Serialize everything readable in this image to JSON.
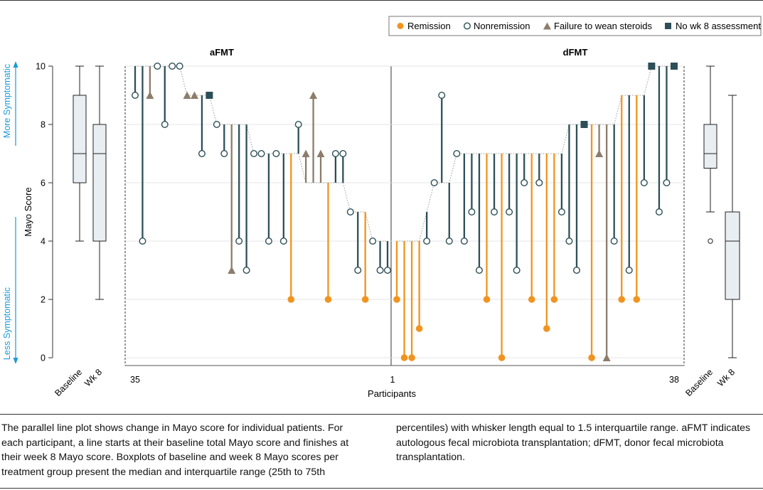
{
  "chart_data": {
    "type": "parallel-line",
    "ylabel": "Mayo Score",
    "xlabel": "Participants",
    "ylim": [
      0,
      10
    ],
    "yticks": [
      0,
      2,
      4,
      6,
      8,
      10
    ],
    "direction_labels": {
      "up": "More Symptomatic",
      "down": "Less Symptomatic"
    },
    "legend": [
      {
        "key": "remission",
        "label": "Remission",
        "marker": "filled-circle",
        "color": "#f0941f"
      },
      {
        "key": "nonremission",
        "label": "Nonremission",
        "marker": "open-circle",
        "color": "#2d4f57"
      },
      {
        "key": "failure",
        "label": "Failure to wean steroids",
        "marker": "triangle",
        "color": "#8c7d6b"
      },
      {
        "key": "nowk8",
        "label": "No wk 8 assessment",
        "marker": "square",
        "color": "#2d4f57"
      }
    ],
    "groups": [
      {
        "name": "aFMT",
        "x_start_label": "35",
        "x_end_label": "1",
        "participants": [
          {
            "baseline": 10,
            "wk8": 9,
            "outcome": "nonremission"
          },
          {
            "baseline": 10,
            "wk8": 4,
            "outcome": "nonremission"
          },
          {
            "baseline": 10,
            "wk8": 9,
            "outcome": "failure"
          },
          {
            "baseline": 10,
            "wk8": 10,
            "outcome": "nonremission"
          },
          {
            "baseline": 10,
            "wk8": 8,
            "outcome": "nonremission"
          },
          {
            "baseline": 10,
            "wk8": 10,
            "outcome": "nonremission"
          },
          {
            "baseline": 10,
            "wk8": 10,
            "outcome": "nonremission"
          },
          {
            "baseline": 9,
            "wk8": 9,
            "outcome": "failure"
          },
          {
            "baseline": 9,
            "wk8": 9,
            "outcome": "failure"
          },
          {
            "baseline": 9,
            "wk8": 7,
            "outcome": "nonremission"
          },
          {
            "baseline": 9,
            "wk8": 9,
            "outcome": "nowk8"
          },
          {
            "baseline": 8,
            "wk8": 8,
            "outcome": "nonremission"
          },
          {
            "baseline": 8,
            "wk8": 7,
            "outcome": "nonremission"
          },
          {
            "baseline": 8,
            "wk8": 3,
            "outcome": "failure"
          },
          {
            "baseline": 8,
            "wk8": 4,
            "outcome": "nonremission"
          },
          {
            "baseline": 8,
            "wk8": 3,
            "outcome": "nonremission"
          },
          {
            "baseline": 7,
            "wk8": 7,
            "outcome": "nonremission"
          },
          {
            "baseline": 7,
            "wk8": 7,
            "outcome": "nonremission"
          },
          {
            "baseline": 7,
            "wk8": 4,
            "outcome": "nonremission"
          },
          {
            "baseline": 7,
            "wk8": 7,
            "outcome": "nonremission"
          },
          {
            "baseline": 7,
            "wk8": 4,
            "outcome": "nonremission"
          },
          {
            "baseline": 7,
            "wk8": 2,
            "outcome": "remission"
          },
          {
            "baseline": 7,
            "wk8": 8,
            "outcome": "nonremission"
          },
          {
            "baseline": 6,
            "wk8": 7,
            "outcome": "failure"
          },
          {
            "baseline": 6,
            "wk8": 9,
            "outcome": "failure"
          },
          {
            "baseline": 6,
            "wk8": 7,
            "outcome": "failure"
          },
          {
            "baseline": 6,
            "wk8": 2,
            "outcome": "remission"
          },
          {
            "baseline": 6,
            "wk8": 7,
            "outcome": "nonremission"
          },
          {
            "baseline": 6,
            "wk8": 7,
            "outcome": "nonremission"
          },
          {
            "baseline": 5,
            "wk8": 5,
            "outcome": "nonremission"
          },
          {
            "baseline": 5,
            "wk8": 3,
            "outcome": "nonremission"
          },
          {
            "baseline": 5,
            "wk8": 2,
            "outcome": "remission"
          },
          {
            "baseline": 4,
            "wk8": 4,
            "outcome": "nonremission"
          },
          {
            "baseline": 4,
            "wk8": 3,
            "outcome": "nonremission"
          },
          {
            "baseline": 4,
            "wk8": 3,
            "outcome": "nonremission"
          }
        ],
        "boxplots": [
          {
            "label": "Baseline",
            "min": 4,
            "q1": 6,
            "median": 7,
            "q3": 9,
            "max": 10,
            "outliers": []
          },
          {
            "label": "Wk 8",
            "min": 2,
            "q1": 4,
            "median": 7,
            "q3": 8,
            "max": 10,
            "outliers": []
          }
        ]
      },
      {
        "name": "dFMT",
        "x_start_label": "1",
        "x_end_label": "38",
        "participants": [
          {
            "baseline": 4,
            "wk8": 2,
            "outcome": "remission"
          },
          {
            "baseline": 4,
            "wk8": 0,
            "outcome": "remission"
          },
          {
            "baseline": 4,
            "wk8": 0,
            "outcome": "remission"
          },
          {
            "baseline": 4,
            "wk8": 1,
            "outcome": "remission"
          },
          {
            "baseline": 5,
            "wk8": 4,
            "outcome": "nonremission"
          },
          {
            "baseline": 6,
            "wk8": 6,
            "outcome": "nonremission"
          },
          {
            "baseline": 6,
            "wk8": 9,
            "outcome": "nonremission"
          },
          {
            "baseline": 6,
            "wk8": 4,
            "outcome": "nonremission"
          },
          {
            "baseline": 7,
            "wk8": 7,
            "outcome": "nonremission"
          },
          {
            "baseline": 7,
            "wk8": 4,
            "outcome": "nonremission"
          },
          {
            "baseline": 7,
            "wk8": 5,
            "outcome": "nonremission"
          },
          {
            "baseline": 7,
            "wk8": 3,
            "outcome": "nonremission"
          },
          {
            "baseline": 7,
            "wk8": 2,
            "outcome": "remission"
          },
          {
            "baseline": 7,
            "wk8": 5,
            "outcome": "nonremission"
          },
          {
            "baseline": 7,
            "wk8": 0,
            "outcome": "remission"
          },
          {
            "baseline": 7,
            "wk8": 5,
            "outcome": "nonremission"
          },
          {
            "baseline": 7,
            "wk8": 3,
            "outcome": "nonremission"
          },
          {
            "baseline": 7,
            "wk8": 6,
            "outcome": "nonremission"
          },
          {
            "baseline": 7,
            "wk8": 2,
            "outcome": "remission"
          },
          {
            "baseline": 7,
            "wk8": 6,
            "outcome": "nonremission"
          },
          {
            "baseline": 7,
            "wk8": 1,
            "outcome": "remission"
          },
          {
            "baseline": 7,
            "wk8": 2,
            "outcome": "remission"
          },
          {
            "baseline": 7,
            "wk8": 5,
            "outcome": "nonremission"
          },
          {
            "baseline": 8,
            "wk8": 4,
            "outcome": "nonremission"
          },
          {
            "baseline": 8,
            "wk8": 3,
            "outcome": "nonremission"
          },
          {
            "baseline": 8,
            "wk8": 8,
            "outcome": "nowk8"
          },
          {
            "baseline": 8,
            "wk8": 0,
            "outcome": "remission"
          },
          {
            "baseline": 8,
            "wk8": 7,
            "outcome": "failure"
          },
          {
            "baseline": 8,
            "wk8": 0,
            "outcome": "failure"
          },
          {
            "baseline": 8,
            "wk8": 4,
            "outcome": "nonremission"
          },
          {
            "baseline": 9,
            "wk8": 2,
            "outcome": "remission"
          },
          {
            "baseline": 9,
            "wk8": 3,
            "outcome": "nonremission"
          },
          {
            "baseline": 9,
            "wk8": 2,
            "outcome": "remission"
          },
          {
            "baseline": 9,
            "wk8": 6,
            "outcome": "nonremission"
          },
          {
            "baseline": 10,
            "wk8": 10,
            "outcome": "nowk8"
          },
          {
            "baseline": 10,
            "wk8": 5,
            "outcome": "nonremission"
          },
          {
            "baseline": 10,
            "wk8": 6,
            "outcome": "nonremission"
          },
          {
            "baseline": 10,
            "wk8": 10,
            "outcome": "nowk8"
          }
        ],
        "boxplots": [
          {
            "label": "Baseline",
            "min": 5,
            "q1": 6.5,
            "median": 7,
            "q3": 8,
            "max": 10,
            "outliers": [
              4
            ]
          },
          {
            "label": "Wk 8",
            "min": 0,
            "q1": 2,
            "median": 4,
            "q3": 5,
            "max": 9,
            "outliers": []
          }
        ]
      }
    ]
  },
  "caption": {
    "text": "The parallel line plot shows change in Mayo score for individual patients. For each participant, a line starts at their baseline total Mayo score and finishes at their week 8 Mayo score. Boxplots of baseline and week 8 Mayo scores per treatment group present the median and interquartile range (25th to 75th percentiles) with whisker length equal to 1.5 interquartile range. aFMT indicates autologous fecal microbiota transplantation; dFMT, donor fecal microbiota transplantation."
  }
}
